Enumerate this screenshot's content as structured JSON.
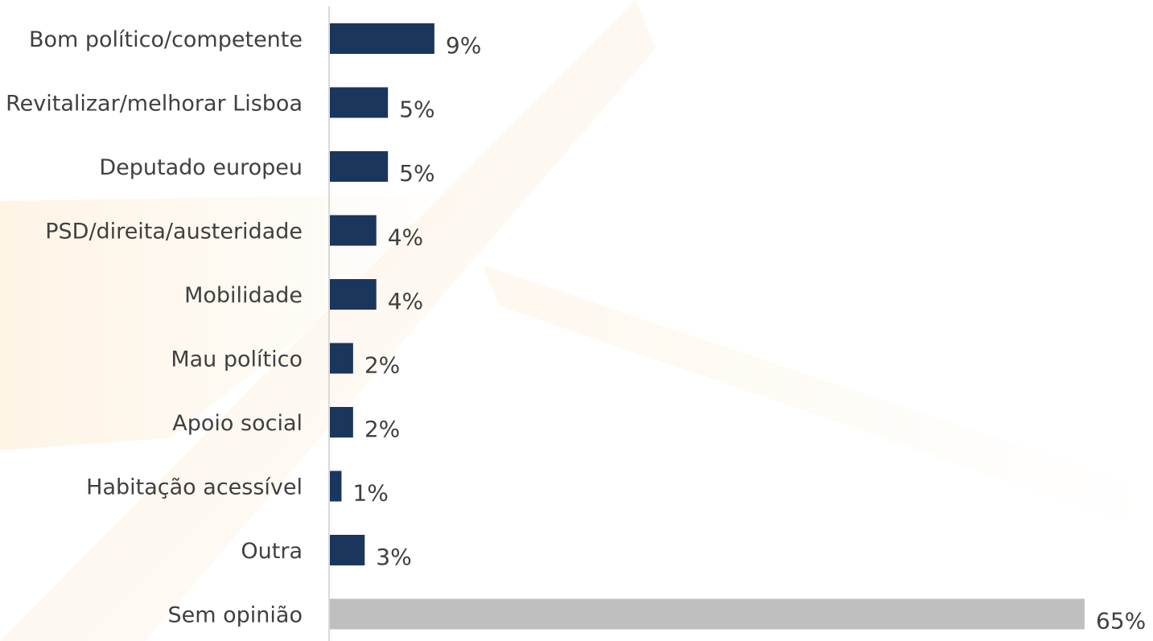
{
  "chart_data": {
    "type": "bar",
    "orientation": "horizontal",
    "categories": [
      "Bom político/competente",
      "Revitalizar/melhorar Lisboa",
      "Deputado europeu",
      "PSD/direita/austeridade",
      "Mobilidade",
      "Mau político",
      "Apoio social",
      "Habitação acessível",
      "Outra",
      "Sem opinião"
    ],
    "values": [
      9,
      5,
      5,
      4,
      4,
      2,
      2,
      1,
      3,
      65
    ],
    "value_labels": [
      "9%",
      "5%",
      "5%",
      "4%",
      "4%",
      "2%",
      "2%",
      "1%",
      "3%",
      "65%"
    ],
    "unit": "%",
    "xlim": [
      0,
      65
    ],
    "grid": false,
    "legend": "none",
    "colors": {
      "primary": "#1b365d",
      "muted": "#bfbfbf",
      "axis": "#d9d9d9",
      "text": "#404040"
    },
    "highlight_muted": [
      "Sem opinião"
    ]
  }
}
